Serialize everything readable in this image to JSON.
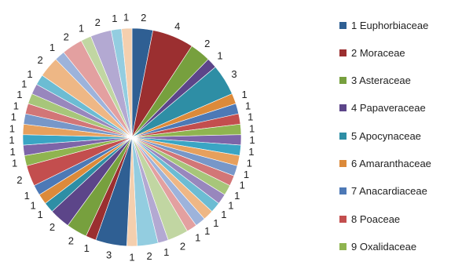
{
  "chart_data": {
    "type": "pie",
    "values": [
      2,
      4,
      2,
      1,
      3,
      1,
      1,
      1,
      1,
      1,
      1,
      1,
      1,
      1,
      1,
      1,
      1,
      1,
      1,
      1,
      2,
      1,
      2,
      1,
      3,
      1,
      2,
      2,
      1,
      1,
      1,
      2,
      1,
      1,
      1,
      1,
      1,
      1,
      1,
      1,
      1,
      2,
      1,
      2,
      1,
      2,
      1,
      1
    ],
    "labels": [
      "2",
      "4",
      "2",
      "1",
      "3",
      "1",
      "1",
      "1",
      "1",
      "1",
      "1",
      "1",
      "1",
      "1",
      "1",
      "1",
      "1",
      "1",
      "1",
      "1",
      "2",
      "1",
      "2",
      "1",
      "3",
      "1",
      "2",
      "2",
      "1",
      "1",
      "1",
      "2",
      "1",
      "1",
      "1",
      "1",
      "1",
      "1",
      "1",
      "1",
      "1",
      "2",
      "1",
      "2",
      "1",
      "2",
      "1",
      "1"
    ],
    "colors": [
      "#2f5f93",
      "#9b2f30",
      "#77a03e",
      "#5c4589",
      "#2e8ea5",
      "#dc8a3a",
      "#4d79b6",
      "#c34e4e",
      "#8fb450",
      "#7d65a8",
      "#3aa5c4",
      "#e6a05d",
      "#7797c8",
      "#d27677",
      "#a7c67a",
      "#9887bd",
      "#6cbcd3",
      "#eeb785",
      "#9db3db",
      "#e3a0a0",
      "#c1d6a2",
      "#b3a9d2",
      "#93cde0",
      "#f4cfae",
      "#2f5f93",
      "#9b2f30",
      "#77a03e",
      "#5c4589",
      "#2e8ea5",
      "#dc8a3a",
      "#4d79b6",
      "#c34e4e",
      "#8fb450",
      "#7d65a8",
      "#3aa5c4",
      "#e6a05d",
      "#7797c8",
      "#d27677",
      "#a7c67a",
      "#9887bd",
      "#6cbcd3",
      "#eeb785",
      "#9db3db",
      "#e3a0a0",
      "#c1d6a2",
      "#b3a9d2",
      "#93cde0",
      "#f4cfae"
    ],
    "legend": [
      {
        "label": "1 Euphorbiaceae",
        "color": "#2f5f93"
      },
      {
        "label": "2 Moraceae",
        "color": "#9b2f30"
      },
      {
        "label": "3 Asteraceae",
        "color": "#77a03e"
      },
      {
        "label": "4  Papaveraceae",
        "color": "#5c4589"
      },
      {
        "label": "5 Apocynaceae",
        "color": "#2e8ea5"
      },
      {
        "label": "6 Amaranthaceae",
        "color": "#dc8a3a"
      },
      {
        "label": "7 Anacardiaceae",
        "color": "#4d79b6"
      },
      {
        "label": "8 Poaceae",
        "color": "#c34e4e"
      },
      {
        "label": "9 Oxalidaceae",
        "color": "#8fb450"
      }
    ],
    "legend_position": "right",
    "title": ""
  }
}
